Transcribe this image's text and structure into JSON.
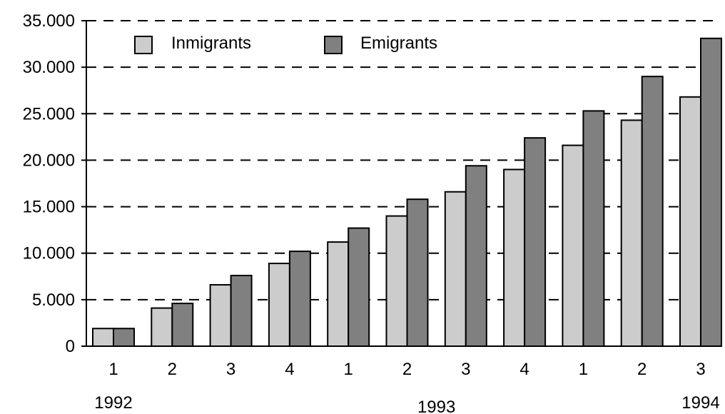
{
  "chart_data": {
    "type": "bar",
    "categories": [
      "1",
      "2",
      "3",
      "4",
      "1",
      "2",
      "3",
      "4",
      "1",
      "2",
      "3"
    ],
    "years": [
      {
        "label": "1992",
        "start": 0,
        "end": 0
      },
      {
        "label": "1993",
        "start": 4,
        "end": 7
      },
      {
        "label": "1994",
        "start": 10,
        "end": 10
      }
    ],
    "series": [
      {
        "name": "Inmigrants",
        "color": "#cccccc",
        "values": [
          1900,
          4100,
          6600,
          8900,
          11200,
          14000,
          16600,
          19000,
          21600,
          24300,
          26800
        ]
      },
      {
        "name": "Emigrants",
        "color": "#808080",
        "values": [
          1900,
          4600,
          7600,
          10200,
          12700,
          15800,
          19400,
          22400,
          25300,
          29000,
          33100
        ]
      }
    ],
    "yticks": [
      "0",
      "5.000",
      "10.000",
      "15.000",
      "20.000",
      "25.000",
      "30.000",
      "35.000"
    ],
    "ylim": [
      0,
      35000
    ],
    "ystep": 5000,
    "grid": true,
    "legend": "top-left"
  }
}
